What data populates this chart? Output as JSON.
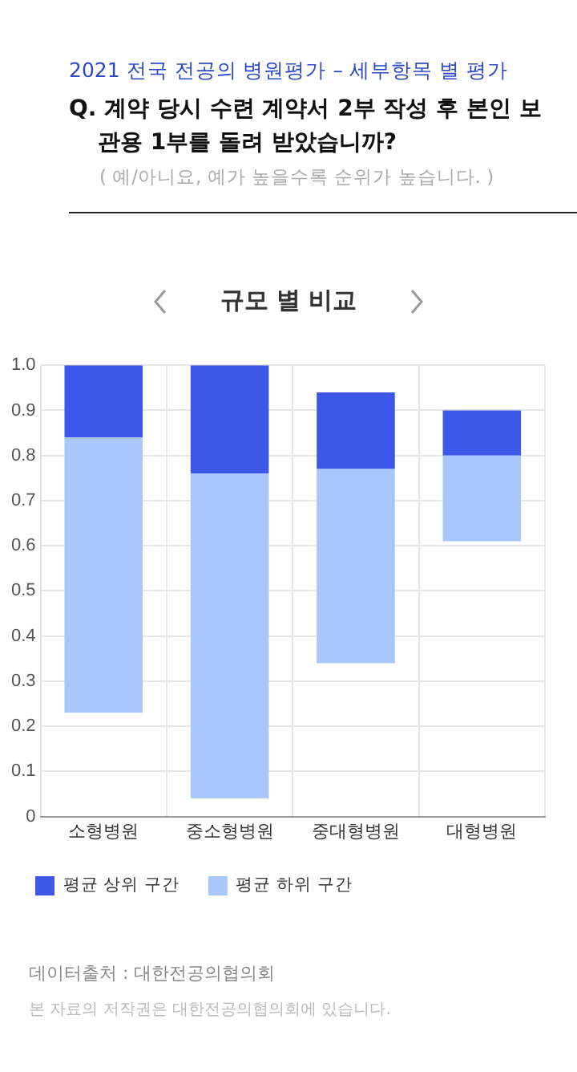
{
  "chart_data": {
    "type": "bar",
    "title": "Q. 계약 당시 수련 계약서 2부 작성 후 본인 보관용 1부를 돌려 받았습니까?",
    "subtitle": "( 예/아니요, 예가 높을수록 순위가 높습니다. )",
    "annotations": [
      "2021 전국 전공의 병원평가 – 세부항목 별 평가",
      "규모 별 비교",
      "데이터출처 : 대한전공의협의회",
      "본 자료의 저작권은 대한전공의협의회에 있습니다."
    ],
    "categories": [
      "소형병원",
      "중소형병원",
      "중대형병원",
      "대형병원"
    ],
    "series": [
      {
        "name": "평균 하위 구간",
        "color": "#a8c8fc",
        "base": [
          0.23,
          0.04,
          0.34,
          0.61
        ],
        "values": [
          0.61,
          0.72,
          0.43,
          0.19
        ]
      },
      {
        "name": "평균 상위 구간",
        "color": "#3d57e8",
        "base": [
          0.84,
          0.76,
          0.77,
          0.8
        ],
        "values": [
          0.16,
          0.24,
          0.17,
          0.1
        ]
      }
    ],
    "ylim": [
      0,
      1
    ],
    "yticks": [
      0,
      0.1,
      0.2,
      0.3,
      0.4,
      0.5,
      0.6,
      0.7,
      0.8,
      0.9,
      {
        "value": 1,
        "label": "1.0"
      }
    ],
    "grid": true,
    "legend": "bottom left"
  }
}
